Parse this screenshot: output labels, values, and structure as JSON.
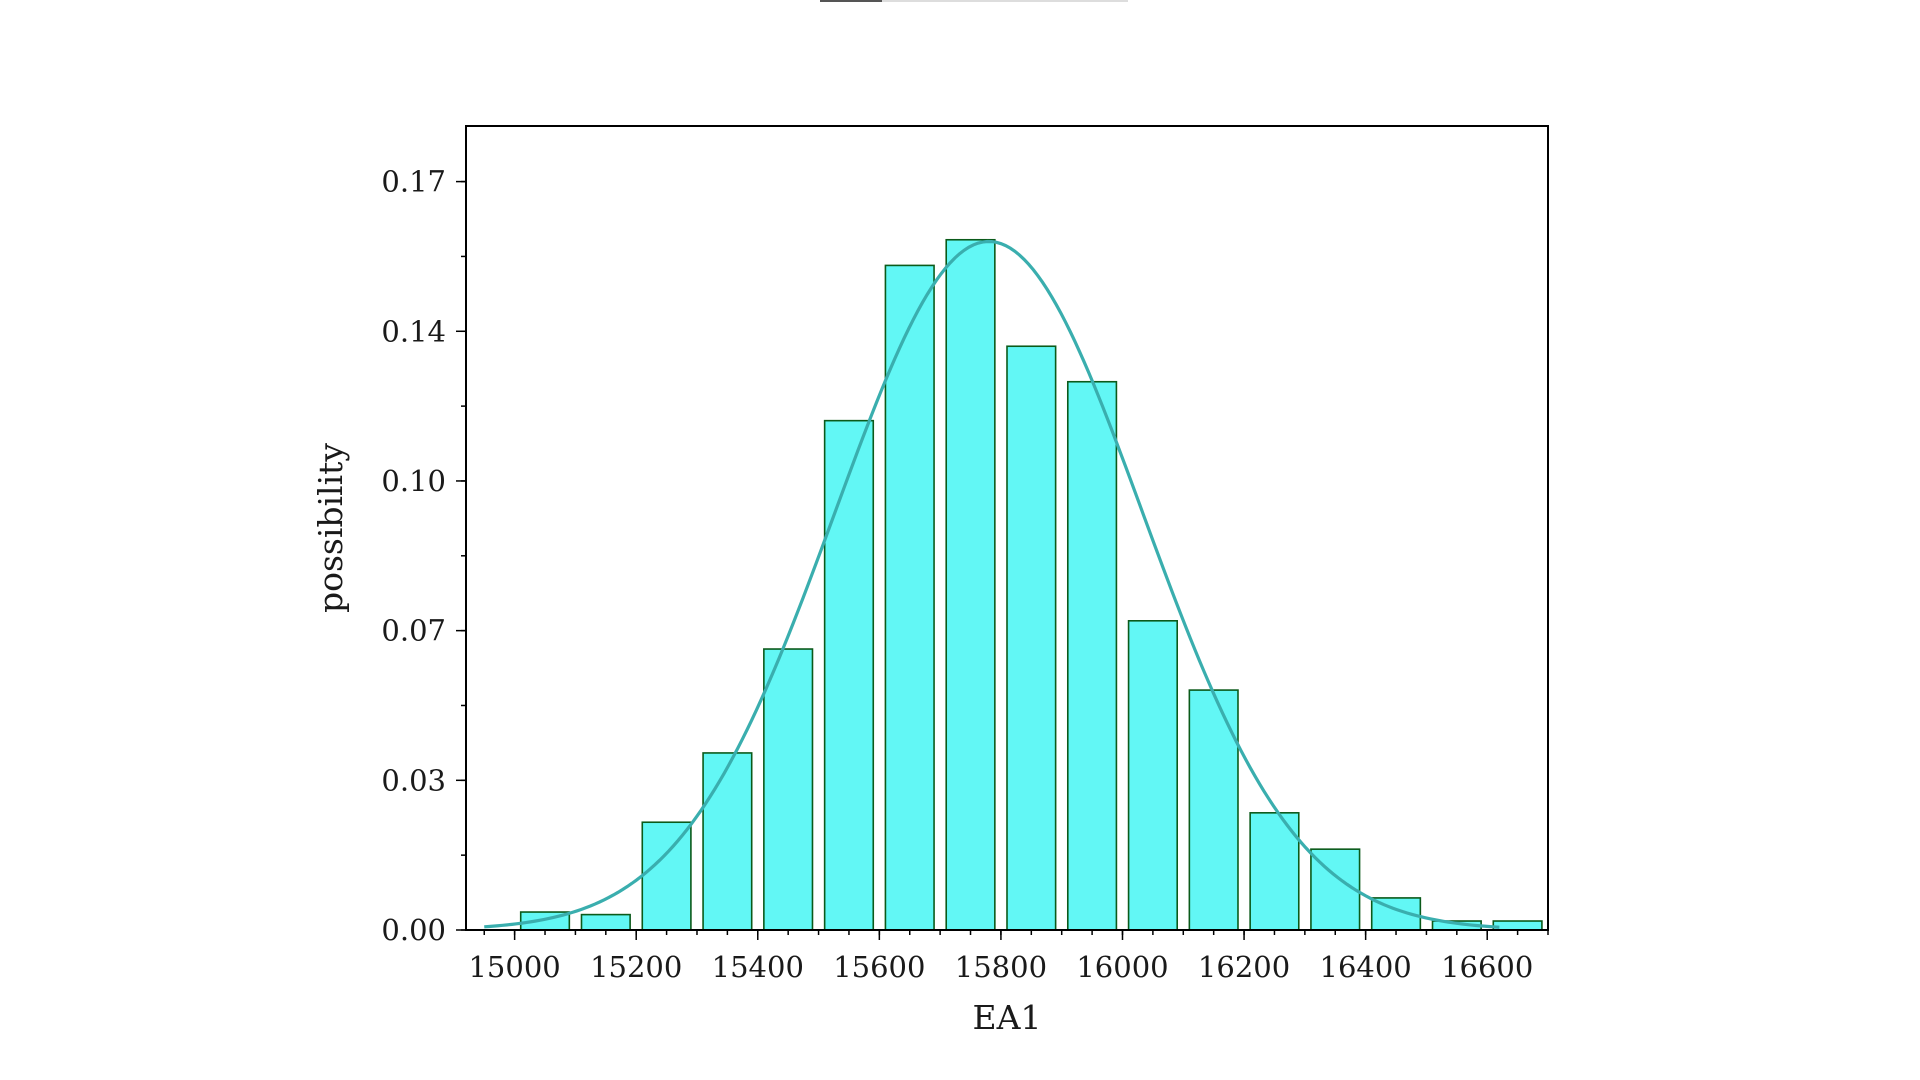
{
  "chart_data": {
    "type": "bar",
    "title": "",
    "xlabel": "EA1",
    "ylabel": "possibility",
    "xlim": [
      14920,
      16700
    ],
    "ylim": [
      0,
      0.188
    ],
    "x_ticks": [
      15000,
      15200,
      15400,
      15600,
      15800,
      16000,
      16200,
      16400,
      16600
    ],
    "y_ticks": [
      0.0,
      0.035,
      0.07,
      0.105,
      0.14,
      0.175
    ],
    "y_tick_labels": [
      "0.00",
      "0.03",
      "0.07",
      "0.10",
      "0.14",
      "0.17"
    ],
    "bin_width": 100,
    "bars": [
      {
        "x": 15050,
        "value": 0.0042
      },
      {
        "x": 15150,
        "value": 0.0036
      },
      {
        "x": 15250,
        "value": 0.0252
      },
      {
        "x": 15350,
        "value": 0.0414
      },
      {
        "x": 15450,
        "value": 0.0657
      },
      {
        "x": 15550,
        "value": 0.1191
      },
      {
        "x": 15650,
        "value": 0.1554
      },
      {
        "x": 15750,
        "value": 0.1614
      },
      {
        "x": 15850,
        "value": 0.1365
      },
      {
        "x": 15950,
        "value": 0.1282
      },
      {
        "x": 16050,
        "value": 0.0723
      },
      {
        "x": 16150,
        "value": 0.0561
      },
      {
        "x": 16250,
        "value": 0.0274
      },
      {
        "x": 16350,
        "value": 0.0189
      },
      {
        "x": 16450,
        "value": 0.0075
      },
      {
        "x": 16550,
        "value": 0.0021
      },
      {
        "x": 16650,
        "value": 0.0021
      }
    ],
    "fit_curve": {
      "type": "normal",
      "mean": 15780,
      "sd": 253,
      "peak": 0.161,
      "x_range": [
        14950,
        16620
      ]
    },
    "grid": false,
    "colors": {
      "bar_fill": "#62f7f5",
      "bar_edge": "#0b5a1a",
      "curve": "#3aaeae"
    }
  }
}
